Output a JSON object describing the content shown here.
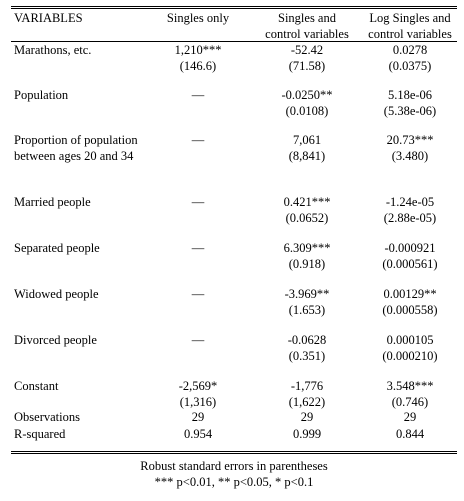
{
  "header": {
    "variables": "VARIABLES",
    "col1": "Singles only",
    "col2": "Singles and control variables",
    "col3": "Log Singles and control variables"
  },
  "rows": [
    {
      "label": "Marathons, etc.",
      "c1": "1,210***",
      "c1se": "(146.6)",
      "c2": "-52.42",
      "c2se": "(71.58)",
      "c3": "0.0278",
      "c3se": "(0.0375)"
    },
    {
      "label": "Population",
      "c1": "—",
      "c1se": "",
      "c2": "-0.0250**",
      "c2se": "(0.0108)",
      "c3": "5.18e-06",
      "c3se": "(5.38e-06)"
    },
    {
      "label": "Proportion of population between ages 20 and 34",
      "c1": "—",
      "c1se": "",
      "c2": "7,061",
      "c2se": "(8,841)",
      "c3": "20.73***",
      "c3se": "(3.480)"
    },
    {
      "label": "Married people",
      "c1": "—",
      "c1se": "",
      "c2": "0.421***",
      "c2se": "(0.0652)",
      "c3": "-1.24e-05",
      "c3se": "(2.88e-05)"
    },
    {
      "label": "Separated people",
      "c1": "—",
      "c1se": "",
      "c2": "6.309***",
      "c2se": "(0.918)",
      "c3": "-0.000921",
      "c3se": "(0.000561)"
    },
    {
      "label": "Widowed people",
      "c1": "—",
      "c1se": "",
      "c2": "-3.969**",
      "c2se": "(1.653)",
      "c3": "0.00129**",
      "c3se": "(0.000558)"
    },
    {
      "label": "Divorced people",
      "c1": "—",
      "c1se": "",
      "c2": "-0.0628",
      "c2se": "(0.351)",
      "c3": "0.000105",
      "c3se": "(0.000210)"
    },
    {
      "label": "Constant",
      "c1": "-2,569*",
      "c1se": "(1,316)",
      "c2": "-1,776",
      "c2se": "(1,622)",
      "c3": "3.548***",
      "c3se": "(0.746)"
    }
  ],
  "observations": {
    "label": "Observations",
    "c1": "29",
    "c2": "29",
    "c3": "29"
  },
  "rsquared": {
    "label": "R-squared",
    "c1": "0.954",
    "c2": "0.999",
    "c3": "0.844"
  },
  "notes": {
    "line1": "Robust standard errors in parentheses",
    "line2": "*** p<0.01, ** p<0.05, * p<0.1"
  }
}
